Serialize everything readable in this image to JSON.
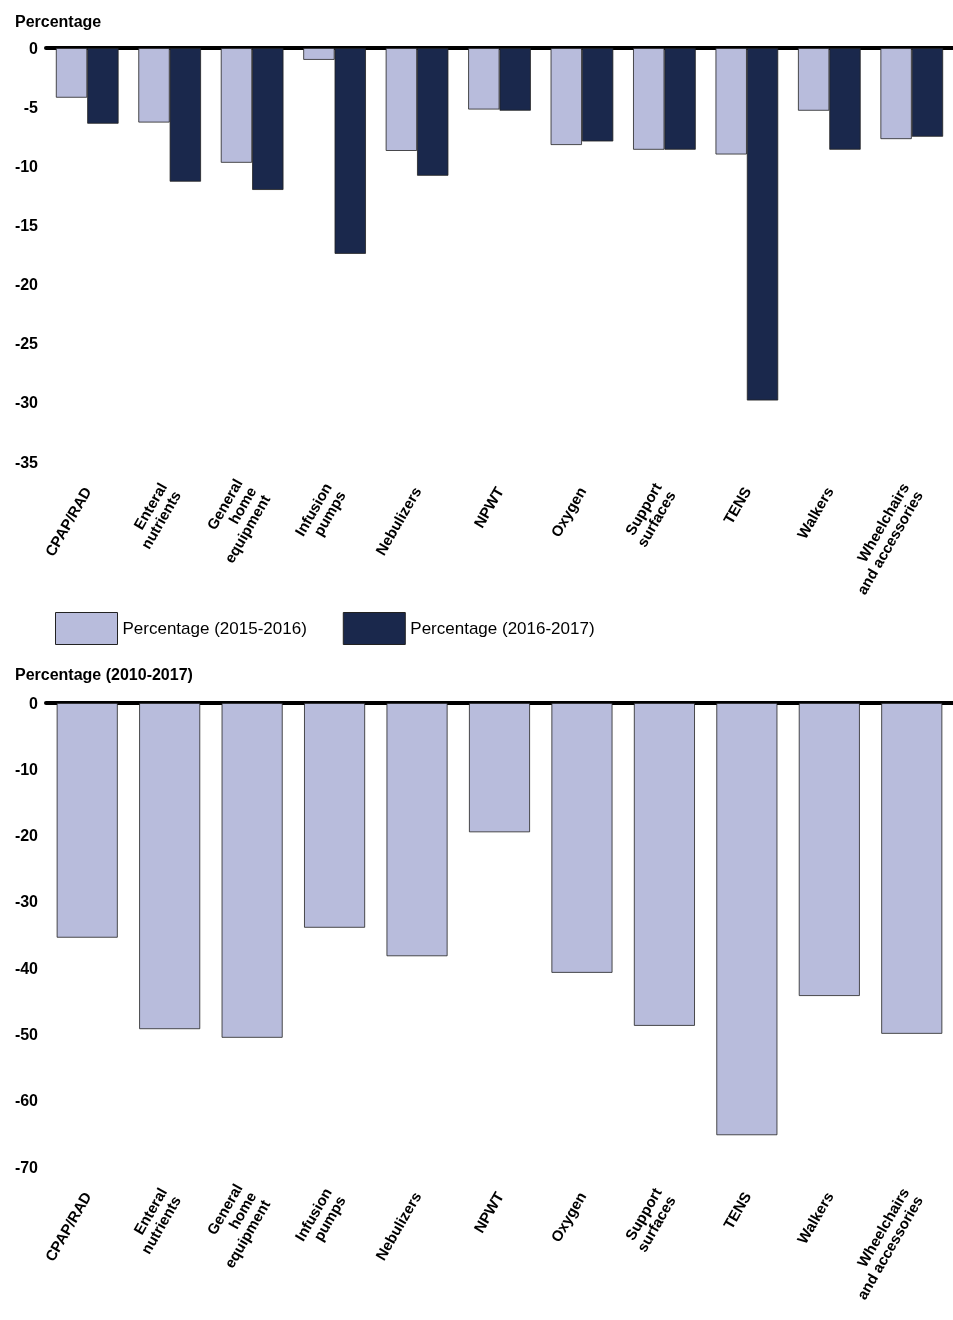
{
  "chart_data": [
    {
      "type": "bar",
      "ylabel": "Percentage",
      "categories": [
        "CPAP/RAD",
        "Enteral\nnutrients",
        "General\nhome\nequipment",
        "Infusion\npumps",
        "Nebulizers",
        "NPWT",
        "Oxygen",
        "Support\nsurfaces",
        "TENS",
        "Walkers",
        "Wheelchairs\nand accessories"
      ],
      "series": [
        {
          "name": "Percentage (2015-2016)",
          "color": "#b8bcdc",
          "values": [
            -4.2,
            -6.3,
            -9.7,
            -1.0,
            -8.7,
            -5.2,
            -8.2,
            -8.6,
            -9.0,
            -5.3,
            -7.7
          ]
        },
        {
          "name": "Percentage (2016-2017)",
          "color": "#1a284c",
          "values": [
            -6.4,
            -11.3,
            -12.0,
            -17.4,
            -10.8,
            -5.3,
            -7.9,
            -8.6,
            -29.8,
            -8.6,
            -7.5
          ]
        }
      ],
      "ylim": [
        -35,
        0
      ],
      "yticks": [
        -35,
        -30,
        -25,
        -20,
        -15,
        -10,
        -5,
        0
      ],
      "legend": "bottom"
    },
    {
      "type": "bar",
      "ylabel": "Percentage (2010-2017)",
      "categories": [
        "CPAP/RAD",
        "Enteral\nnutrients",
        "General\nhome\nequipment",
        "Infusion\npumps",
        "Nebulizers",
        "NPWT",
        "Oxygen",
        "Support\nsurfaces",
        "TENS",
        "Walkers",
        "Wheelchairs\nand accessories"
      ],
      "series": [
        {
          "color": "#b8bcdc",
          "values": [
            -35.4,
            -49.2,
            -50.5,
            -33.9,
            -38.2,
            -19.5,
            -40.7,
            -48.7,
            -65.2,
            -44.2,
            -49.9
          ]
        }
      ],
      "ylim": [
        -70,
        0
      ],
      "yticks": [
        -70,
        -60,
        -50,
        -40,
        -30,
        -20,
        -10,
        0
      ]
    }
  ]
}
